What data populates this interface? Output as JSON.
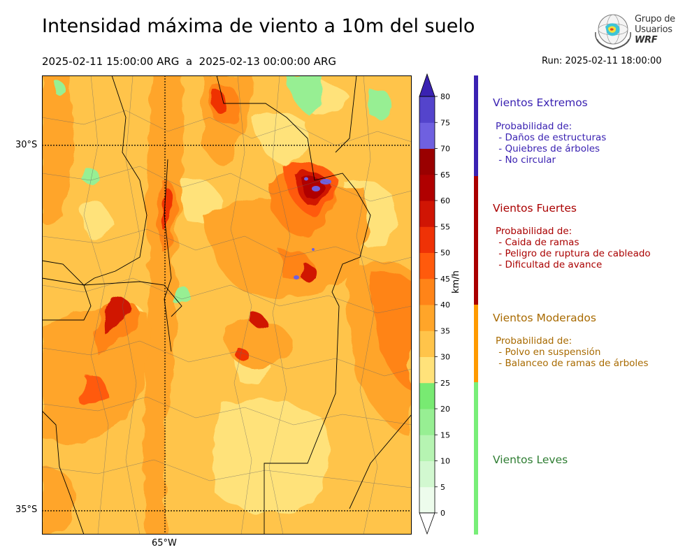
{
  "title": "Intensidad máxima de viento a 10m del suelo",
  "period": "2025-02-11 15:00:00 ARG  a  2025-02-13 00:00:00 ARG",
  "run": "Run: 2025-02-11 18:00:00",
  "logo": {
    "line1": "Grupo de",
    "line2": "Usuarios",
    "line3": "WRF"
  },
  "map": {
    "lat_labels": [
      "30°S",
      "35°S"
    ],
    "lon_labels": [
      "65°W"
    ],
    "unit": "km/h"
  },
  "colorbar": {
    "ticks": [
      "0",
      "5",
      "10",
      "15",
      "20",
      "25",
      "30",
      "35",
      "40",
      "45",
      "50",
      "55",
      "60",
      "65",
      "70",
      "75",
      "80"
    ],
    "colors": [
      "#edfcec",
      "#d2f8d0",
      "#b6f4b2",
      "#97ef93",
      "#78ea72",
      "#ffe27a",
      "#ffc44a",
      "#ffa529",
      "#ff8418",
      "#ff5a0c",
      "#ef3206",
      "#d01504",
      "#b00000",
      "#9a0000",
      "#6f60e0",
      "#5444cc",
      "#3e2aba"
    ],
    "extend_top": "#3a22b2",
    "extend_bottom": "#ffffff"
  },
  "categories": [
    {
      "title": "Vientos Extremos",
      "color": "#3a22b2",
      "bar_color": "#3a22b2",
      "desc": " Probabilidad de:\n - Daños de estructuras\n - Quiebres de árboles\n - No circular"
    },
    {
      "title": "Vientos Fuertes",
      "color": "#aa0000",
      "bar_color": "#aa0000",
      "desc": " Probabilidad de:\n - Caida de ramas\n - Peligro de ruptura de cableado\n - Dificultad de avance"
    },
    {
      "title": "Vientos Moderados",
      "color": "#a86a00",
      "bar_color": "#ff9a00",
      "desc": " Probabilidad de:\n - Polvo en suspensión\n - Balanceo de ramas de árboles"
    },
    {
      "title": "Vientos Leves",
      "color": "#2e7d32",
      "bar_color": "#78ee78",
      "desc": ""
    }
  ]
}
